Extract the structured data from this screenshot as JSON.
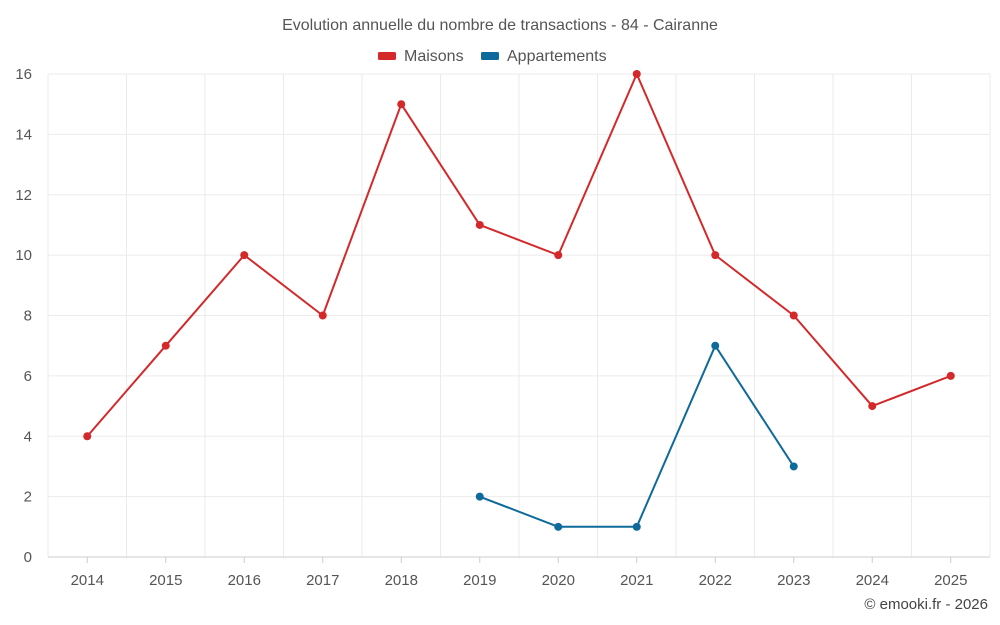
{
  "chart_data": {
    "type": "line",
    "title": "Evolution annuelle du nombre de transactions - 84 - Cairanne",
    "categories": [
      "2014",
      "2015",
      "2016",
      "2017",
      "2018",
      "2019",
      "2020",
      "2021",
      "2022",
      "2023",
      "2024",
      "2025"
    ],
    "series": [
      {
        "name": "Maisons",
        "color": "#d3292b",
        "values": [
          4,
          7,
          10,
          8,
          15,
          11,
          10,
          16,
          10,
          8,
          5,
          6
        ]
      },
      {
        "name": "Appartements",
        "color": "#0f6a9c",
        "values": [
          null,
          null,
          null,
          null,
          null,
          2,
          1,
          1,
          7,
          3,
          null,
          null
        ]
      }
    ],
    "ylim": [
      0,
      16
    ],
    "yticks": [
      0,
      2,
      4,
      6,
      8,
      10,
      12,
      14,
      16
    ],
    "grid": true,
    "legend_position": "top-center",
    "xlabel": "",
    "ylabel": ""
  },
  "credit": "© emooki.fr - 2026"
}
